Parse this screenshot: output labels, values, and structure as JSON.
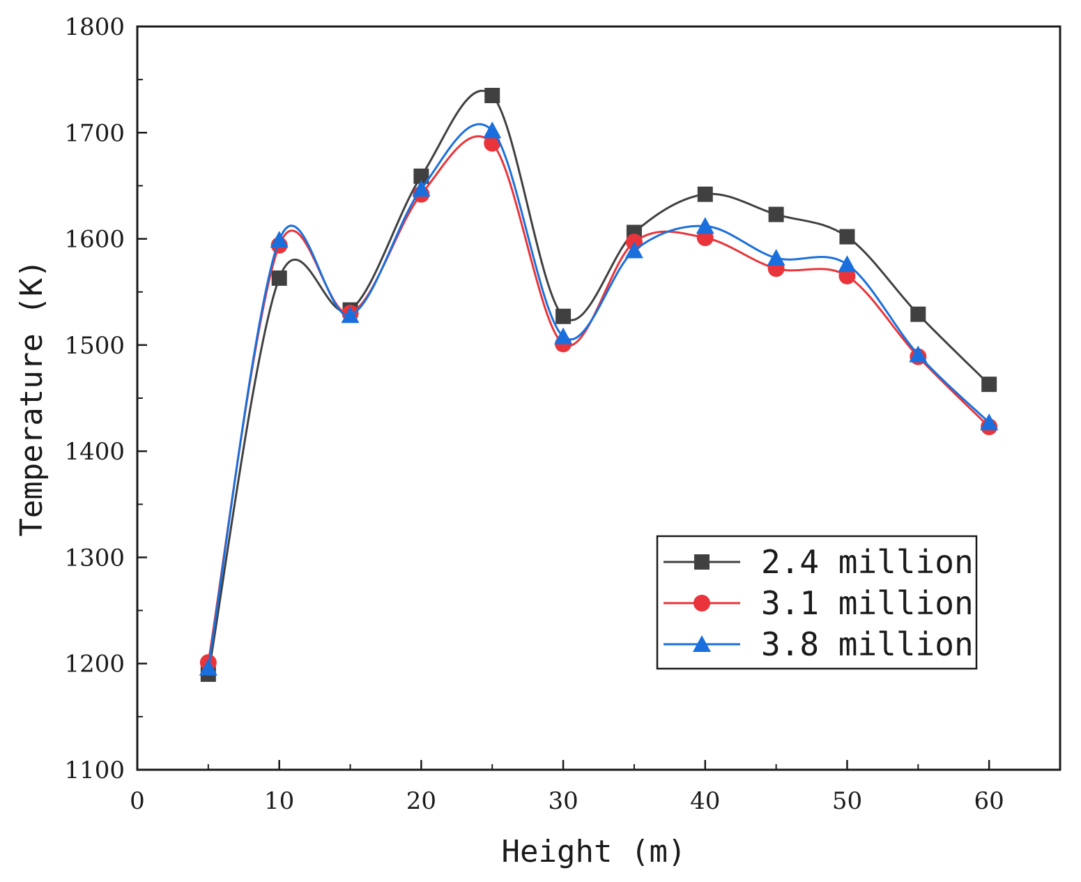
{
  "chart_data": {
    "type": "line",
    "title": "",
    "xlabel": "Height (m)",
    "ylabel": "Temperature (K)",
    "xlim": [
      0,
      65
    ],
    "ylim": [
      1100,
      1800
    ],
    "xticks": [
      0,
      10,
      20,
      30,
      40,
      50,
      60
    ],
    "yticks": [
      1100,
      1200,
      1300,
      1400,
      1500,
      1600,
      1700,
      1800
    ],
    "grid": false,
    "legend_position": "bottom-right",
    "x": [
      5,
      10,
      15,
      20,
      25,
      30,
      35,
      40,
      45,
      50,
      55,
      60
    ],
    "series": [
      {
        "name": "2.4 million",
        "color": "#404040",
        "marker": "square",
        "values": [
          1190,
          1563,
          1533,
          1659,
          1735,
          1527,
          1606,
          1642,
          1623,
          1602,
          1529,
          1463
        ]
      },
      {
        "name": "3.1 million",
        "color": "#e8343a",
        "marker": "circle",
        "values": [
          1201,
          1594,
          1530,
          1642,
          1690,
          1501,
          1597,
          1601,
          1572,
          1565,
          1489,
          1423
        ]
      },
      {
        "name": "3.8 million",
        "color": "#1a6fdc",
        "marker": "triangle",
        "values": [
          1196,
          1599,
          1528,
          1647,
          1702,
          1508,
          1589,
          1612,
          1582,
          1576,
          1491,
          1427
        ]
      }
    ]
  }
}
